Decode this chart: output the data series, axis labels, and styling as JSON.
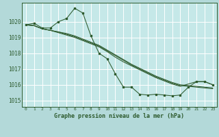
{
  "background_color": "#b3d9d9",
  "plot_bg_color": "#c5e8e8",
  "grid_color": "#ffffff",
  "line_color": "#2d5a2d",
  "marker_color": "#2d5a2d",
  "title": "Graphe pression niveau de la mer (hPa)",
  "xlim": [
    -0.5,
    23.5
  ],
  "ylim": [
    1014.6,
    1021.2
  ],
  "yticks": [
    1015,
    1016,
    1017,
    1018,
    1019,
    1020
  ],
  "xtick_labels": [
    "0",
    "1",
    "2",
    "3",
    "4",
    "5",
    "6",
    "7",
    "8",
    "9",
    "10",
    "11",
    "12",
    "13",
    "14",
    "15",
    "16",
    "17",
    "18",
    "19",
    "20",
    "21",
    "22",
    "23"
  ],
  "series_main": [
    1019.8,
    1019.9,
    1019.6,
    1019.6,
    1020.0,
    1020.2,
    1020.85,
    1020.55,
    1019.1,
    1018.0,
    1017.65,
    1016.7,
    1015.85,
    1015.85,
    1015.4,
    1015.35,
    1015.4,
    1015.35,
    1015.3,
    1015.35,
    1015.85,
    1016.2,
    1016.2,
    1016.0
  ],
  "series_smooth": [
    [
      1019.8,
      1019.75,
      1019.55,
      1019.45,
      1019.35,
      1019.2,
      1019.05,
      1018.85,
      1018.65,
      1018.45,
      1018.15,
      1017.85,
      1017.55,
      1017.25,
      1017.0,
      1016.75,
      1016.5,
      1016.3,
      1016.1,
      1015.95,
      1015.9,
      1015.85,
      1015.8,
      1015.75
    ],
    [
      1019.8,
      1019.75,
      1019.55,
      1019.45,
      1019.35,
      1019.25,
      1019.1,
      1018.9,
      1018.7,
      1018.5,
      1018.2,
      1017.9,
      1017.6,
      1017.3,
      1017.05,
      1016.8,
      1016.55,
      1016.35,
      1016.15,
      1016.0,
      1015.95,
      1015.9,
      1015.85,
      1015.8
    ],
    [
      1019.8,
      1019.75,
      1019.55,
      1019.45,
      1019.3,
      1019.15,
      1019.0,
      1018.8,
      1018.6,
      1018.4,
      1018.1,
      1017.75,
      1017.45,
      1017.2,
      1016.95,
      1016.7,
      1016.45,
      1016.25,
      1016.05,
      1015.9,
      1016.05,
      1016.2,
      1016.2,
      1016.0
    ]
  ]
}
